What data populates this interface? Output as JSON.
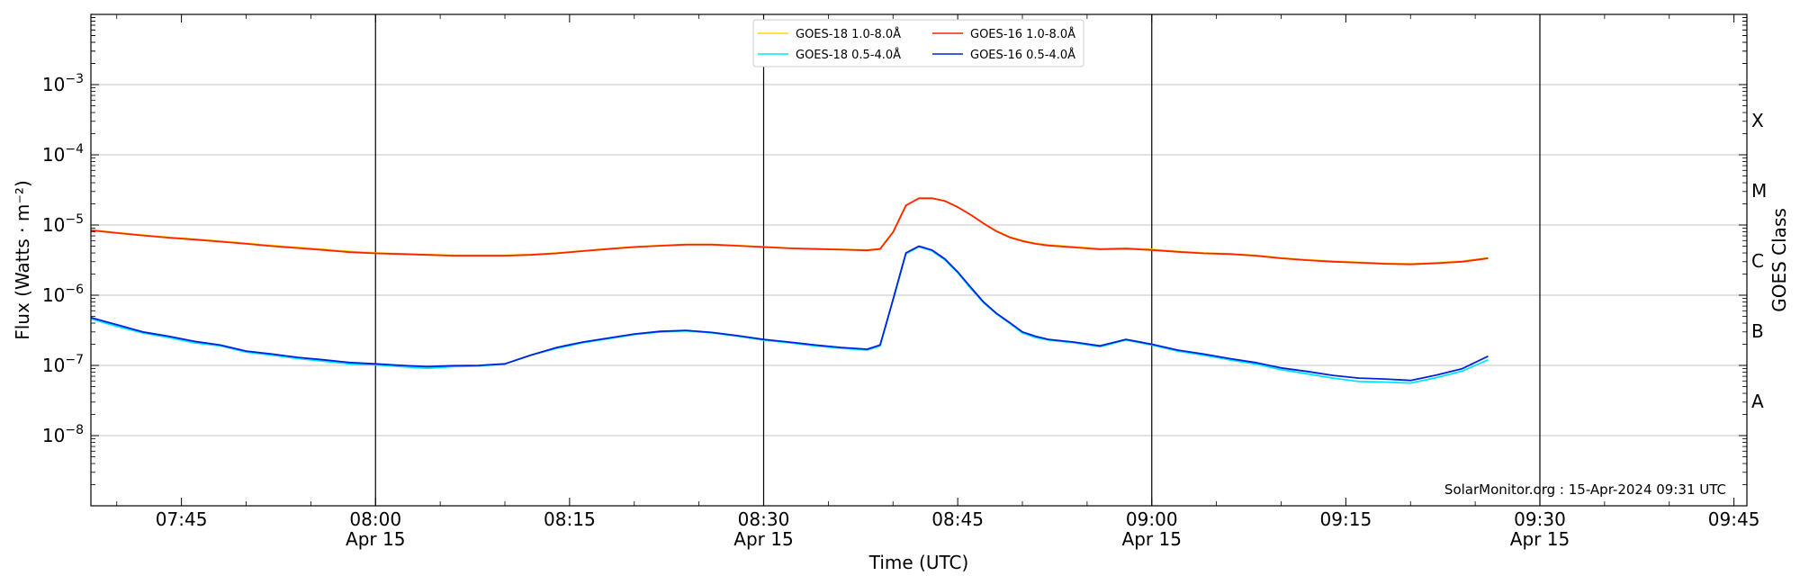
{
  "chart_data": {
    "type": "line",
    "xlabel": "Time (UTC)",
    "ylabel": "Flux (Watts · m⁻²)",
    "right_axis_label": "GOES Class",
    "y_scale": "log",
    "ylim": [
      1e-09,
      0.01
    ],
    "xlim": [
      "07:38",
      "09:46"
    ],
    "y_ticks": [
      {
        "value": 1e-08,
        "label": "10",
        "exp": "−8"
      },
      {
        "value": 1e-07,
        "label": "10",
        "exp": "−7"
      },
      {
        "value": 1e-06,
        "label": "10",
        "exp": "−6"
      },
      {
        "value": 1e-05,
        "label": "10",
        "exp": "−5"
      },
      {
        "value": 0.0001,
        "label": "10",
        "exp": "−4"
      },
      {
        "value": 0.001,
        "label": "10",
        "exp": "−3"
      }
    ],
    "x_ticks": [
      {
        "time": "07:45",
        "label": "07:45",
        "sub": ""
      },
      {
        "time": "08:00",
        "label": "08:00",
        "sub": "Apr 15"
      },
      {
        "time": "08:15",
        "label": "08:15",
        "sub": ""
      },
      {
        "time": "08:30",
        "label": "08:30",
        "sub": "Apr 15"
      },
      {
        "time": "08:45",
        "label": "08:45",
        "sub": ""
      },
      {
        "time": "09:00",
        "label": "09:00",
        "sub": "Apr 15"
      },
      {
        "time": "09:15",
        "label": "09:15",
        "sub": ""
      },
      {
        "time": "09:30",
        "label": "09:30",
        "sub": "Apr 15"
      },
      {
        "time": "09:45",
        "label": "09:45",
        "sub": ""
      }
    ],
    "vertical_lines": [
      "08:00",
      "08:30",
      "09:00",
      "09:30"
    ],
    "goes_classes": [
      {
        "label": "X",
        "value": 0.000316
      },
      {
        "label": "M",
        "value": 3.16e-05
      },
      {
        "label": "C",
        "value": 3.16e-06
      },
      {
        "label": "B",
        "value": 3.16e-07
      },
      {
        "label": "A",
        "value": 3.16e-08
      }
    ],
    "grid": true,
    "legend_position": "top-center",
    "credit": "SolarMonitor.org : 15-Apr-2024 09:31 UTC",
    "series": [
      {
        "name": "GOES-18 1.0-8.0Å",
        "color": "#ffd700",
        "x": [
          "07:38",
          "07:40",
          "07:42",
          "07:44",
          "07:46",
          "07:48",
          "07:50",
          "07:52",
          "07:54",
          "07:56",
          "07:58",
          "08:00",
          "08:02",
          "08:04",
          "08:06",
          "08:08",
          "08:10",
          "08:12",
          "08:14",
          "08:16",
          "08:18",
          "08:20",
          "08:22",
          "08:24",
          "08:26",
          "08:28",
          "08:30",
          "08:32",
          "08:34",
          "08:36",
          "08:38",
          "08:39",
          "08:40",
          "08:41",
          "08:42",
          "08:43",
          "08:44",
          "08:45",
          "08:46",
          "08:47",
          "08:48",
          "08:49",
          "08:50",
          "08:51",
          "08:52",
          "08:54",
          "08:56",
          "08:58",
          "09:00",
          "09:02",
          "09:04",
          "09:06",
          "09:08",
          "09:10",
          "09:12",
          "09:14",
          "09:16",
          "09:18",
          "09:20",
          "09:22",
          "09:24",
          "09:26"
        ],
        "y": [
          8.5e-06,
          7.8e-06,
          7.2e-06,
          6.7e-06,
          6.3e-06,
          5.9e-06,
          5.5e-06,
          5.1e-06,
          4.8e-06,
          4.5e-06,
          4.2e-06,
          4e-06,
          3.9e-06,
          3.8e-06,
          3.7e-06,
          3.7e-06,
          3.7e-06,
          3.8e-06,
          4e-06,
          4.3e-06,
          4.6e-06,
          4.9e-06,
          5.1e-06,
          5.3e-06,
          5.3e-06,
          5.1e-06,
          4.9e-06,
          4.7e-06,
          4.6e-06,
          4.5e-06,
          4.4e-06,
          4.6e-06,
          8e-06,
          1.9e-05,
          2.4e-05,
          2.4e-05,
          2.2e-05,
          1.8e-05,
          1.4e-05,
          1.05e-05,
          8.2e-06,
          6.8e-06,
          6e-06,
          5.5e-06,
          5.2e-06,
          4.9e-06,
          4.6e-06,
          4.7e-06,
          4.5e-06,
          4.2e-06,
          4e-06,
          3.9e-06,
          3.7e-06,
          3.4e-06,
          3.2e-06,
          3.05e-06,
          2.95e-06,
          2.85e-06,
          2.8e-06,
          2.9e-06,
          3.05e-06,
          3.4e-06
        ]
      },
      {
        "name": "GOES-16 1.0-8.0Å",
        "color": "#ff2200",
        "x": [
          "07:38",
          "07:40",
          "07:42",
          "07:44",
          "07:46",
          "07:48",
          "07:50",
          "07:52",
          "07:54",
          "07:56",
          "07:58",
          "08:00",
          "08:02",
          "08:04",
          "08:06",
          "08:08",
          "08:10",
          "08:12",
          "08:14",
          "08:16",
          "08:18",
          "08:20",
          "08:22",
          "08:24",
          "08:26",
          "08:28",
          "08:30",
          "08:32",
          "08:34",
          "08:36",
          "08:38",
          "08:39",
          "08:40",
          "08:41",
          "08:42",
          "08:43",
          "08:44",
          "08:45",
          "08:46",
          "08:47",
          "08:48",
          "08:49",
          "08:50",
          "08:51",
          "08:52",
          "08:54",
          "08:56",
          "08:58",
          "09:00",
          "09:02",
          "09:04",
          "09:06",
          "09:08",
          "09:10",
          "09:12",
          "09:14",
          "09:16",
          "09:18",
          "09:20",
          "09:22",
          "09:24",
          "09:26"
        ],
        "y": [
          8.4e-06,
          7.7e-06,
          7.1e-06,
          6.6e-06,
          6.2e-06,
          5.8e-06,
          5.4e-06,
          5e-06,
          4.7e-06,
          4.4e-06,
          4.1e-06,
          3.95e-06,
          3.85e-06,
          3.75e-06,
          3.65e-06,
          3.65e-06,
          3.65e-06,
          3.75e-06,
          3.95e-06,
          4.25e-06,
          4.55e-06,
          4.85e-06,
          5.05e-06,
          5.25e-06,
          5.25e-06,
          5.05e-06,
          4.85e-06,
          4.65e-06,
          4.55e-06,
          4.45e-06,
          4.35e-06,
          4.55e-06,
          7.9e-06,
          1.9e-05,
          2.4e-05,
          2.4e-05,
          2.2e-05,
          1.8e-05,
          1.4e-05,
          1.05e-05,
          8.1e-06,
          6.7e-06,
          5.9e-06,
          5.4e-06,
          5.1e-06,
          4.8e-06,
          4.5e-06,
          4.6e-06,
          4.4e-06,
          4.15e-06,
          3.95e-06,
          3.85e-06,
          3.65e-06,
          3.35e-06,
          3.15e-06,
          3e-06,
          2.9e-06,
          2.8e-06,
          2.75e-06,
          2.85e-06,
          3e-06,
          3.35e-06
        ]
      },
      {
        "name": "GOES-18 0.5-4.0Å",
        "color": "#00e5ff",
        "x": [
          "07:38",
          "07:40",
          "07:42",
          "07:44",
          "07:46",
          "07:48",
          "07:50",
          "07:52",
          "07:54",
          "07:56",
          "07:58",
          "08:00",
          "08:02",
          "08:04",
          "08:06",
          "08:08",
          "08:10",
          "08:12",
          "08:14",
          "08:16",
          "08:18",
          "08:20",
          "08:22",
          "08:24",
          "08:26",
          "08:28",
          "08:30",
          "08:32",
          "08:34",
          "08:36",
          "08:38",
          "08:39",
          "08:40",
          "08:41",
          "08:42",
          "08:43",
          "08:44",
          "08:45",
          "08:46",
          "08:47",
          "08:48",
          "08:49",
          "08:50",
          "08:51",
          "08:52",
          "08:54",
          "08:56",
          "08:58",
          "09:00",
          "09:02",
          "09:04",
          "09:06",
          "09:08",
          "09:10",
          "09:12",
          "09:14",
          "09:16",
          "09:18",
          "09:20",
          "09:22",
          "09:24",
          "09:26"
        ],
        "y": [
          4.6e-07,
          3.6e-07,
          2.9e-07,
          2.5e-07,
          2.1e-07,
          1.9e-07,
          1.55e-07,
          1.4e-07,
          1.25e-07,
          1.15e-07,
          1.05e-07,
          1.02e-07,
          9.6e-08,
          9.1e-08,
          9.6e-08,
          9.8e-08,
          1.05e-07,
          1.4e-07,
          1.75e-07,
          2.1e-07,
          2.4e-07,
          2.75e-07,
          3e-07,
          3.1e-07,
          2.9e-07,
          2.6e-07,
          2.3e-07,
          2.1e-07,
          1.9e-07,
          1.75e-07,
          1.65e-07,
          1.9e-07,
          8.5e-07,
          3.9e-06,
          4.9e-06,
          4.3e-06,
          3.2e-06,
          2.1e-06,
          1.25e-06,
          7.8e-07,
          5.4e-07,
          4e-07,
          2.9e-07,
          2.5e-07,
          2.3e-07,
          2.1e-07,
          1.85e-07,
          2.3e-07,
          1.95e-07,
          1.6e-07,
          1.4e-07,
          1.2e-07,
          1.05e-07,
          8.7e-08,
          7.6e-08,
          6.6e-08,
          5.9e-08,
          5.8e-08,
          5.6e-08,
          6.7e-08,
          8.3e-08,
          1.2e-07
        ]
      },
      {
        "name": "GOES-16 0.5-4.0Å",
        "color": "#0022dd",
        "x": [
          "07:38",
          "07:40",
          "07:42",
          "07:44",
          "07:46",
          "07:48",
          "07:50",
          "07:52",
          "07:54",
          "07:56",
          "07:58",
          "08:00",
          "08:02",
          "08:04",
          "08:06",
          "08:08",
          "08:10",
          "08:12",
          "08:14",
          "08:16",
          "08:18",
          "08:20",
          "08:22",
          "08:24",
          "08:26",
          "08:28",
          "08:30",
          "08:32",
          "08:34",
          "08:36",
          "08:38",
          "08:39",
          "08:40",
          "08:41",
          "08:42",
          "08:43",
          "08:44",
          "08:45",
          "08:46",
          "08:47",
          "08:48",
          "08:49",
          "08:50",
          "08:51",
          "08:52",
          "08:54",
          "08:56",
          "08:58",
          "09:00",
          "09:02",
          "09:04",
          "09:06",
          "09:08",
          "09:10",
          "09:12",
          "09:14",
          "09:16",
          "09:18",
          "09:20",
          "09:22",
          "09:24",
          "09:26"
        ],
        "y": [
          4.8e-07,
          3.8e-07,
          3e-07,
          2.6e-07,
          2.2e-07,
          1.95e-07,
          1.6e-07,
          1.45e-07,
          1.3e-07,
          1.2e-07,
          1.1e-07,
          1.05e-07,
          1e-07,
          9.6e-08,
          9.9e-08,
          1e-07,
          1.05e-07,
          1.4e-07,
          1.8e-07,
          2.15e-07,
          2.45e-07,
          2.8e-07,
          3.05e-07,
          3.15e-07,
          2.95e-07,
          2.65e-07,
          2.35e-07,
          2.15e-07,
          1.95e-07,
          1.8e-07,
          1.7e-07,
          1.95e-07,
          8.7e-07,
          4e-06,
          5e-06,
          4.4e-06,
          3.3e-06,
          2.15e-06,
          1.3e-06,
          8e-07,
          5.5e-07,
          4.1e-07,
          3e-07,
          2.6e-07,
          2.35e-07,
          2.15e-07,
          1.9e-07,
          2.35e-07,
          2e-07,
          1.65e-07,
          1.45e-07,
          1.25e-07,
          1.1e-07,
          9.2e-08,
          8.2e-08,
          7.2e-08,
          6.6e-08,
          6.4e-08,
          6.1e-08,
          7.3e-08,
          9e-08,
          1.35e-07
        ]
      }
    ]
  }
}
